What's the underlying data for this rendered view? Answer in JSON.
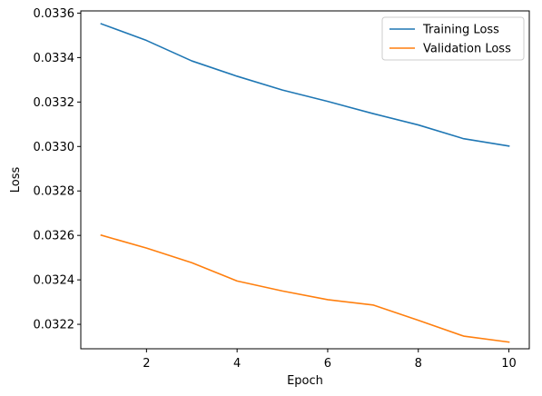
{
  "chart_data": {
    "type": "line",
    "xlabel": "Epoch",
    "ylabel": "Loss",
    "xlim": [
      0.55,
      10.45
    ],
    "ylim": [
      0.03209,
      0.03361
    ],
    "xticks": [
      2,
      4,
      6,
      8,
      10
    ],
    "xtick_labels": [
      "2",
      "4",
      "6",
      "8",
      "10"
    ],
    "yticks": [
      0.0322,
      0.0324,
      0.0326,
      0.0328,
      0.033,
      0.0332,
      0.0334,
      0.0336
    ],
    "ytick_labels": [
      "0.0322",
      "0.0324",
      "0.0326",
      "0.0328",
      "0.0330",
      "0.0332",
      "0.0334",
      "0.0336"
    ],
    "grid": false,
    "legend_position": "top-right",
    "x": [
      1,
      2,
      3,
      4,
      5,
      6,
      7,
      8,
      9,
      10
    ],
    "series": [
      {
        "name": "Training Loss",
        "color": "#1f77b4",
        "values": [
          0.033552,
          0.033477,
          0.033385,
          0.033316,
          0.033254,
          0.033203,
          0.033148,
          0.033097,
          0.033035,
          0.033002
        ]
      },
      {
        "name": "Validation Loss",
        "color": "#ff7f0e",
        "values": [
          0.032601,
          0.032543,
          0.032477,
          0.032395,
          0.03235,
          0.032311,
          0.032287,
          0.032218,
          0.032147,
          0.03212
        ]
      }
    ]
  }
}
